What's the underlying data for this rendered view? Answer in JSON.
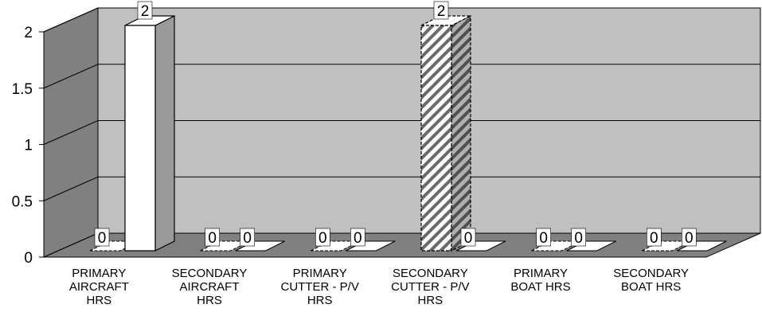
{
  "chart_data": {
    "type": "bar",
    "style": "3d-clustered-column",
    "categories": [
      [
        "PRIMARY",
        "AIRCRAFT",
        "HRS"
      ],
      [
        "SECONDARY",
        "AIRCRAFT",
        "HRS"
      ],
      [
        "PRIMARY",
        "CUTTER - P/V",
        "HRS"
      ],
      [
        "SECONDARY",
        "CUTTER - P/V",
        "HRS"
      ],
      [
        "PRIMARY",
        "BOAT HRS"
      ],
      [
        "SECONDARY",
        "BOAT HRS"
      ]
    ],
    "series": [
      {
        "values": [
          0,
          0,
          0,
          2,
          0,
          0
        ],
        "fill": "hatched"
      },
      {
        "values": [
          2,
          0,
          0,
          0,
          0,
          0
        ],
        "fill": "white"
      }
    ],
    "ylim": [
      0,
      2
    ],
    "yticks": [
      "0",
      "0.5",
      "1",
      "1.5",
      "2"
    ],
    "grid": true,
    "legend": "none",
    "colors": {
      "back_wall": "#c0c0c0",
      "side_wall": "#808080",
      "floor": "#808080",
      "bar_side": "#9a9a9a",
      "bar_top": "#ffffff"
    }
  }
}
